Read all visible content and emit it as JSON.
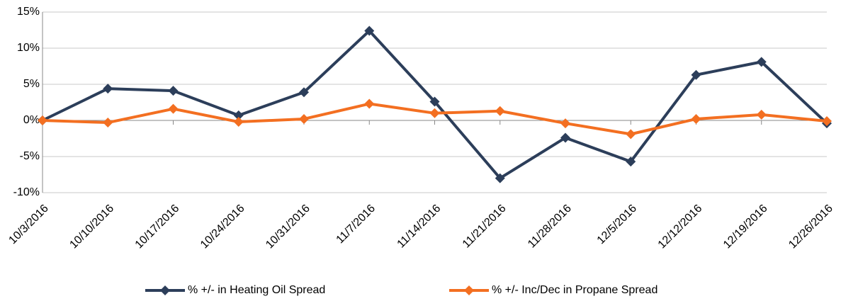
{
  "chart_data": {
    "type": "line",
    "categories": [
      "10/3/2016",
      "10/10/2016",
      "10/17/2016",
      "10/24/2016",
      "10/31/2016",
      "11/7/2016",
      "11/14/2016",
      "11/21/2016",
      "11/28/2016",
      "12/5/2016",
      "12/12/2016",
      "12/19/2016",
      "12/26/2016"
    ],
    "series": [
      {
        "name": "% +/- in Heating Oil Spread",
        "color": "#2c3e5a",
        "values": [
          0,
          4.4,
          4.1,
          0.7,
          3.9,
          12.4,
          2.6,
          -8.0,
          -2.4,
          -5.7,
          6.3,
          8.1,
          -0.4
        ]
      },
      {
        "name": "% +/- Inc/Dec in Propane Spread",
        "color": "#f36f21",
        "values": [
          0,
          -0.3,
          1.6,
          -0.2,
          0.2,
          2.3,
          1.0,
          1.3,
          -0.4,
          -1.9,
          0.2,
          0.8,
          -0.1
        ]
      }
    ],
    "ylim": [
      -10,
      15
    ],
    "yticks": [
      {
        "value": -10,
        "label": "-10%"
      },
      {
        "value": -5,
        "label": "-5%"
      },
      {
        "value": 0,
        "label": "0%"
      },
      {
        "value": 5,
        "label": "5%"
      },
      {
        "value": 10,
        "label": "10%"
      },
      {
        "value": 15,
        "label": "15%"
      }
    ],
    "grid": true,
    "legend": "bottom"
  }
}
